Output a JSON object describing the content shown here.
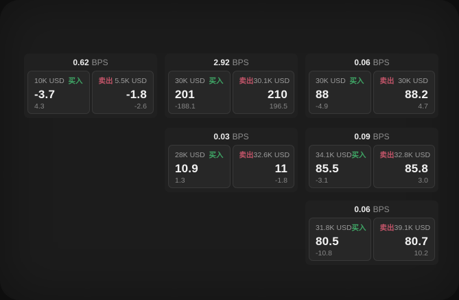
{
  "labels": {
    "bps_unit": "BPS",
    "buy": "买入",
    "sell": "卖出"
  },
  "colors": {
    "buy_green": "#3fa565",
    "sell_red": "#c05468",
    "window_bg": "#1c1c1c",
    "card_bg": "#202020",
    "panel_bg": "#272727"
  },
  "cards": [
    {
      "bps": "0.62",
      "buy": {
        "amount": "10K USD",
        "value": "-3.7",
        "change": "4.3"
      },
      "sell": {
        "amount": "5.5K USD",
        "value": "-1.8",
        "change": "-2.6"
      }
    },
    {
      "bps": "2.92",
      "buy": {
        "amount": "30K USD",
        "value": "201",
        "change": "-188.1"
      },
      "sell": {
        "amount": "30.1K USD",
        "value": "210",
        "change": "196.5"
      }
    },
    {
      "bps": "0.06",
      "buy": {
        "amount": "30K USD",
        "value": "88",
        "change": "-4.9"
      },
      "sell": {
        "amount": "30K USD",
        "value": "88.2",
        "change": "4.7"
      }
    },
    {
      "bps": "0.03",
      "buy": {
        "amount": "28K USD",
        "value": "10.9",
        "change": "1.3"
      },
      "sell": {
        "amount": "32.6K USD",
        "value": "11",
        "change": "-1.8"
      }
    },
    {
      "bps": "0.09",
      "buy": {
        "amount": "34.1K USD",
        "value": "85.5",
        "change": "-3.1"
      },
      "sell": {
        "amount": "32.8K USD",
        "value": "85.8",
        "change": "3.0"
      }
    },
    {
      "bps": "0.06",
      "buy": {
        "amount": "31.8K USD",
        "value": "80.5",
        "change": "-10.8"
      },
      "sell": {
        "amount": "39.1K USD",
        "value": "80.7",
        "change": "10.2"
      }
    }
  ]
}
